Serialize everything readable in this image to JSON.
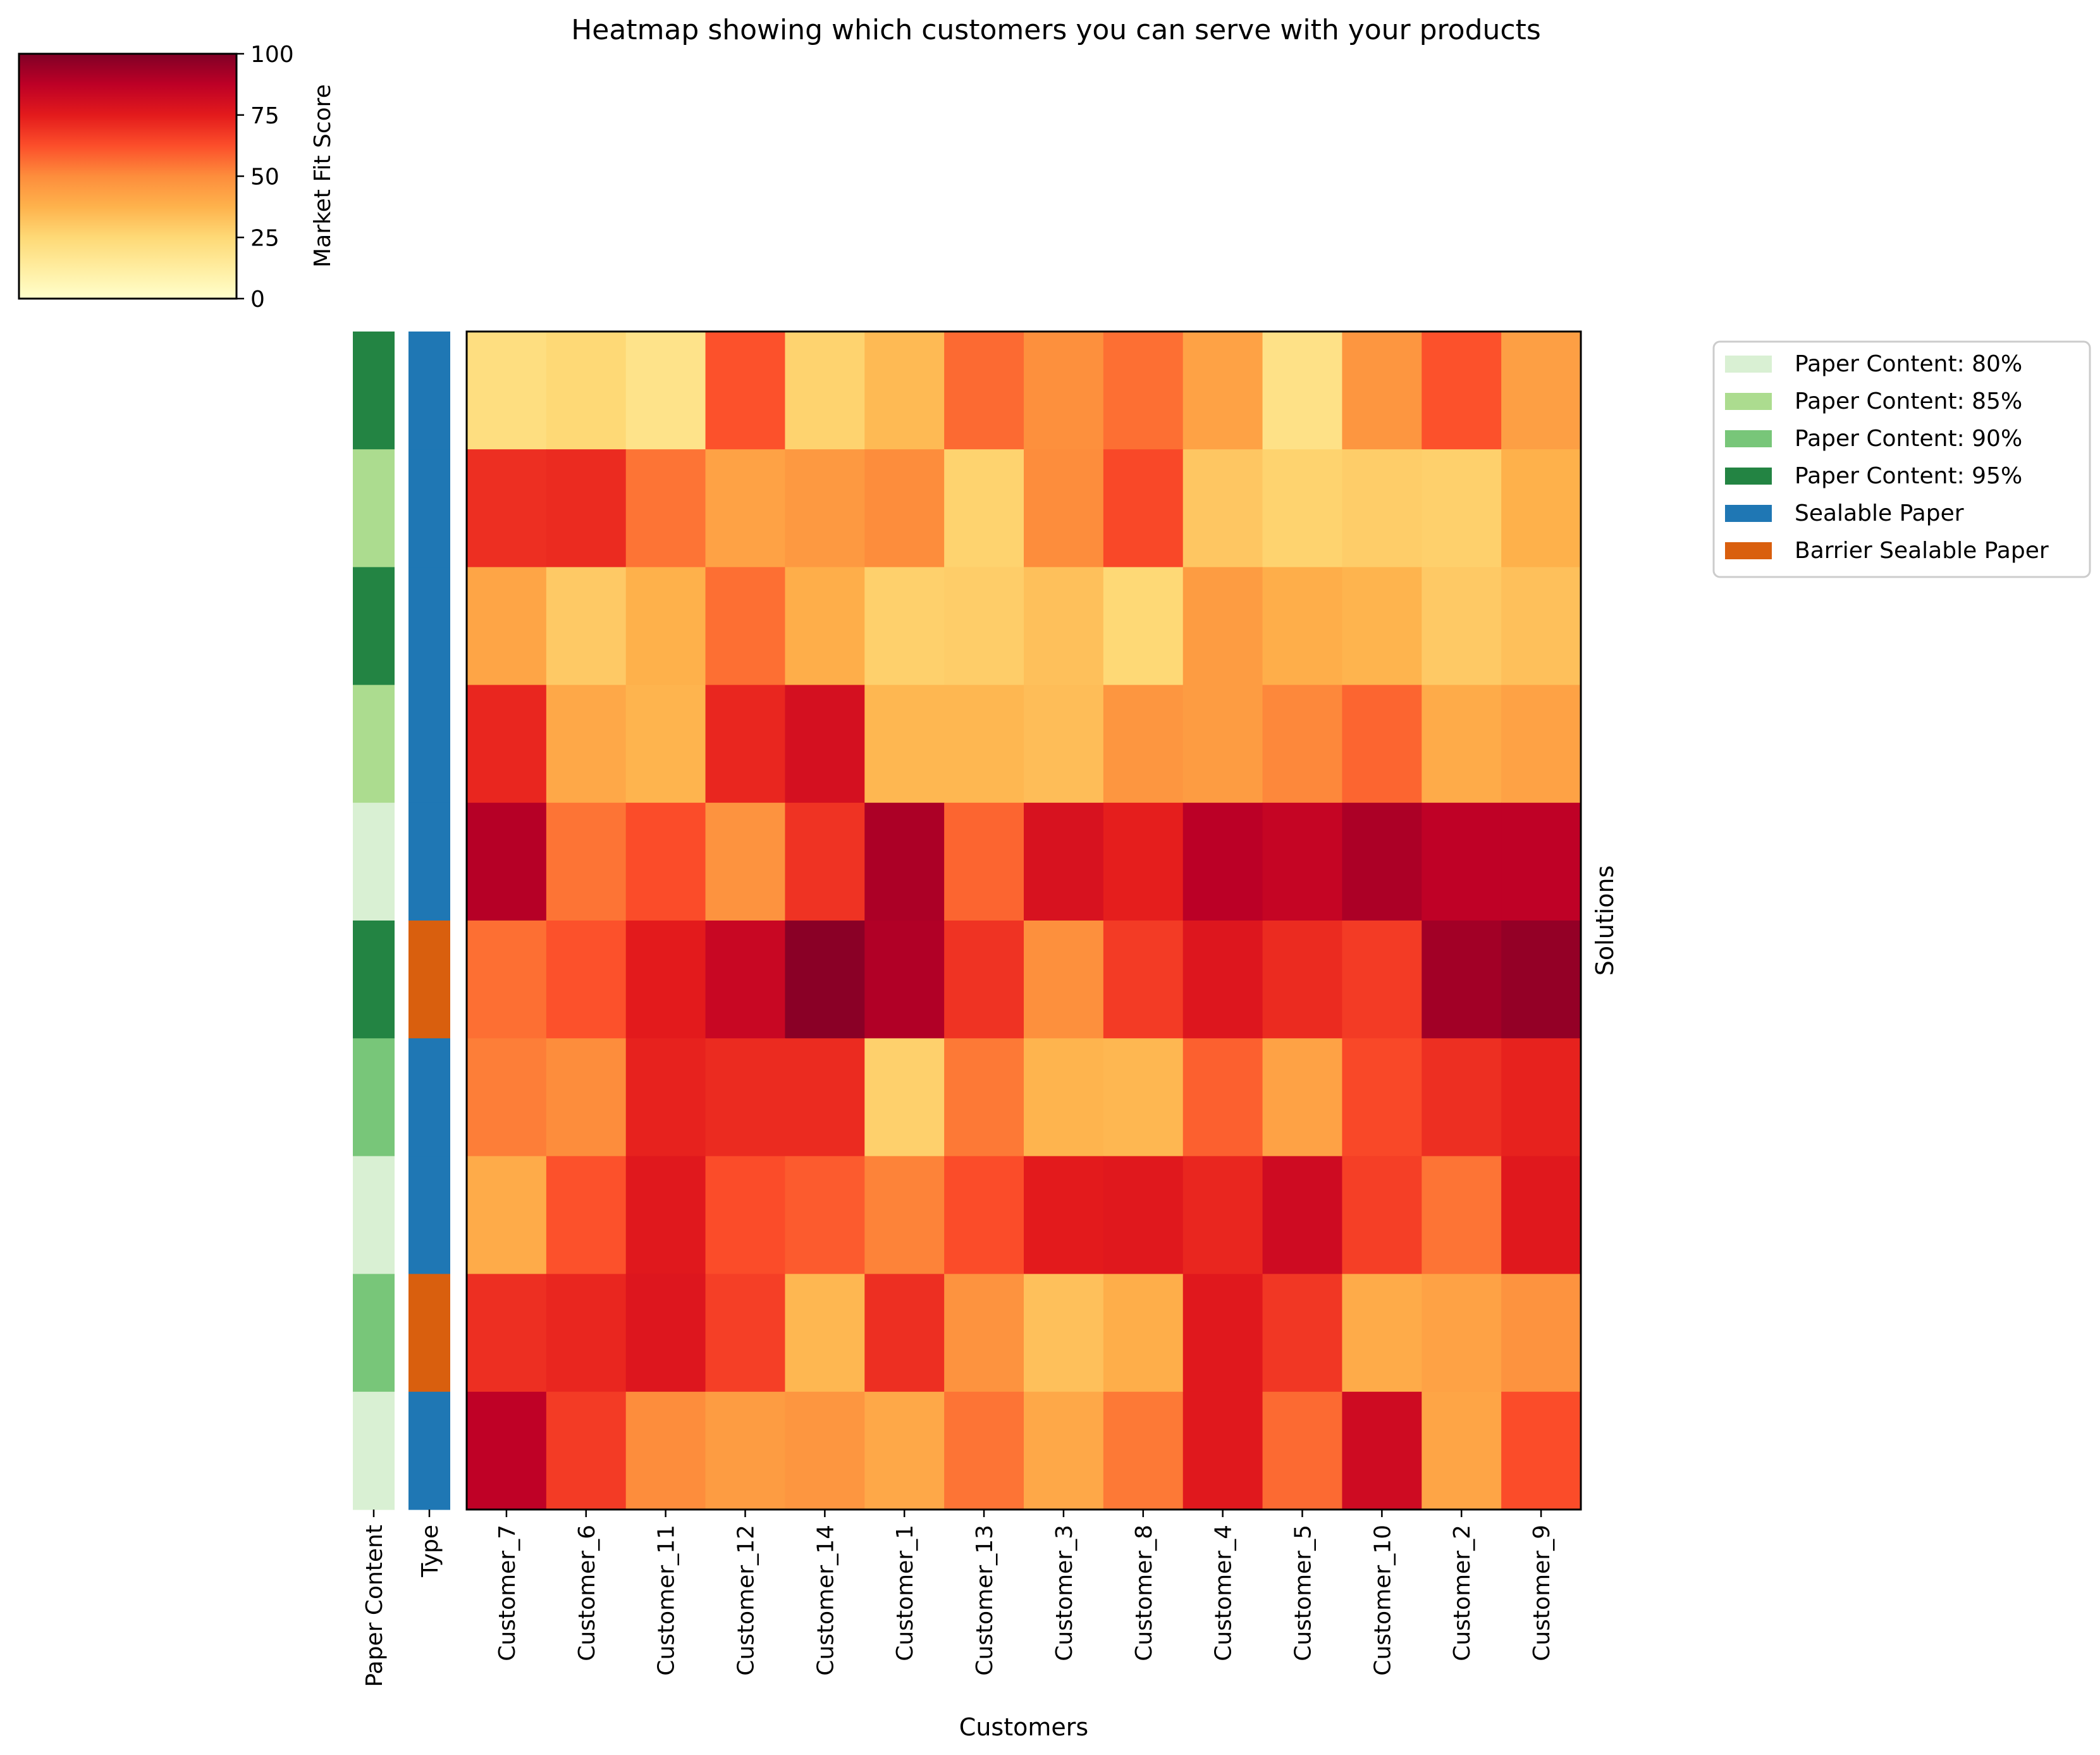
{
  "chart_data": {
    "type": "heatmap",
    "title": "Heatmap showing which customers you can serve with your products",
    "xlabel": "Customers",
    "ylabel": "Solutions",
    "customers": [
      "Customer_7",
      "Customer_6",
      "Customer_11",
      "Customer_12",
      "Customer_14",
      "Customer_1",
      "Customer_13",
      "Customer_3",
      "Customer_8",
      "Customer_4",
      "Customer_5",
      "Customer_10",
      "Customer_2",
      "Customer_9"
    ],
    "values": [
      [
        22,
        25,
        19,
        62,
        27,
        35,
        57,
        49,
        56,
        43,
        20,
        47,
        62,
        44
      ],
      [
        70,
        71,
        55,
        43,
        46,
        50,
        27,
        50,
        64,
        31,
        27,
        29,
        28,
        38
      ],
      [
        42,
        30,
        38,
        56,
        39,
        28,
        29,
        33,
        25,
        45,
        39,
        37,
        30,
        33
      ],
      [
        72,
        41,
        37,
        72,
        80,
        36,
        36,
        34,
        47,
        45,
        51,
        58,
        40,
        43
      ],
      [
        89,
        55,
        63,
        48,
        69,
        91,
        58,
        79,
        74,
        88,
        85,
        91,
        87,
        87
      ],
      [
        56,
        62,
        75,
        84,
        98,
        90,
        69,
        49,
        67,
        77,
        71,
        67,
        93,
        96
      ],
      [
        53,
        50,
        73,
        71,
        71,
        28,
        54,
        37,
        36,
        59,
        43,
        64,
        70,
        73
      ],
      [
        40,
        62,
        76,
        63,
        60,
        52,
        63,
        75,
        76,
        72,
        82,
        66,
        55,
        76
      ],
      [
        70,
        72,
        77,
        66,
        36,
        70,
        48,
        33,
        39,
        76,
        68,
        40,
        43,
        48
      ],
      [
        87,
        67,
        50,
        45,
        47,
        41,
        55,
        41,
        54,
        76,
        57,
        82,
        42,
        63
      ]
    ],
    "vmin": 0,
    "vmax": 100,
    "colormap": "YlOrRd",
    "colorbar": {
      "label": "Market Fit Score",
      "ticks": [
        "0",
        "25",
        "50",
        "75",
        "100"
      ]
    },
    "row_annotations": {
      "paper_content": [
        "Paper Content: 95%",
        "Paper Content: 85%",
        "Paper Content: 95%",
        "Paper Content: 85%",
        "Paper Content: 80%",
        "Paper Content: 95%",
        "Paper Content: 90%",
        "Paper Content: 80%",
        "Paper Content: 90%",
        "Paper Content: 80%"
      ],
      "type": [
        "Sealable Paper",
        "Sealable Paper",
        "Sealable Paper",
        "Sealable Paper",
        "Sealable Paper",
        "Barrier Sealable Paper",
        "Sealable Paper",
        "Sealable Paper",
        "Barrier Sealable Paper",
        "Sealable Paper"
      ]
    },
    "annotation_labels": [
      "Paper Content",
      "Type"
    ],
    "legend": {
      "placement": "right",
      "items": [
        {
          "label": "Paper Content: 80%",
          "color": "#d9f0d3"
        },
        {
          "label": "Paper Content: 85%",
          "color": "#acdc8f"
        },
        {
          "label": "Paper Content: 90%",
          "color": "#78c679"
        },
        {
          "label": "Paper Content: 95%",
          "color": "#238443"
        },
        {
          "label": "Sealable Paper",
          "color": "#1f77b4"
        },
        {
          "label": "Barrier Sealable Paper",
          "color": "#d95f0e"
        }
      ]
    }
  }
}
